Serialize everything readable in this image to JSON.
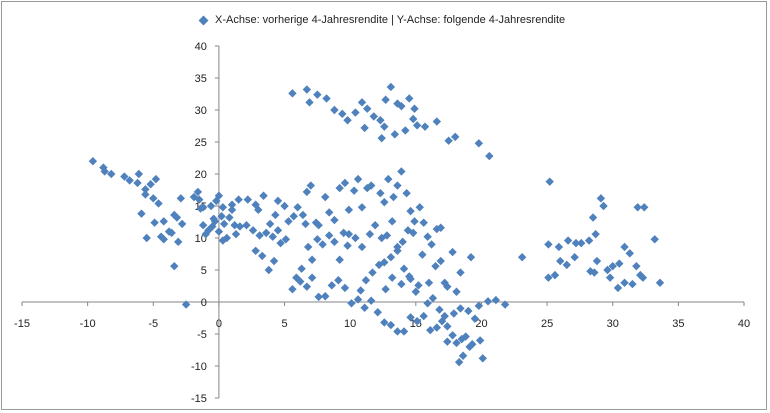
{
  "chart_data": {
    "type": "scatter",
    "title": "",
    "xlabel": "",
    "ylabel": "",
    "legend": {
      "position": "top",
      "series_name": "X-Achse: vorherige 4-Jahresrendite | Y-Achse: folgende 4-Jahresrendite"
    },
    "marker": "diamond",
    "color": "#4f81bd",
    "grid": false,
    "xlim": [
      -15,
      40
    ],
    "ylim": [
      -15,
      40
    ],
    "x_ticks": [
      -15,
      -10,
      -5,
      0,
      5,
      10,
      15,
      20,
      25,
      30,
      35,
      40
    ],
    "y_ticks": [
      -15,
      -10,
      -5,
      0,
      5,
      10,
      15,
      20,
      25,
      30,
      35,
      40
    ],
    "series": [
      {
        "name": "X-Achse: vorherige 4-Jahresrendite | Y-Achse: folgende 4-Jahresrendite",
        "points": [
          [
            -9.6,
            22
          ],
          [
            -8.8,
            21
          ],
          [
            -8.7,
            20.4
          ],
          [
            -8.2,
            20
          ],
          [
            -7.2,
            19.6
          ],
          [
            -6.8,
            19
          ],
          [
            -6.2,
            18.6
          ],
          [
            -6.1,
            20
          ],
          [
            -5.6,
            17.6
          ],
          [
            -5.2,
            18.4
          ],
          [
            -4.8,
            19.2
          ],
          [
            -5,
            16.2
          ],
          [
            -5.9,
            13.8
          ],
          [
            -5.6,
            16.8
          ],
          [
            -4.6,
            15.4
          ],
          [
            -4.9,
            12.4
          ],
          [
            -4.2,
            12.6
          ],
          [
            -3.8,
            11
          ],
          [
            -3.4,
            13.6
          ],
          [
            -3.2,
            13.2
          ],
          [
            -2.8,
            12.2
          ],
          [
            -2.9,
            16.2
          ],
          [
            -1.9,
            16.4
          ],
          [
            -1.4,
            14.6
          ],
          [
            -5.5,
            10
          ],
          [
            -4.4,
            10.2
          ],
          [
            -4.2,
            9.8
          ],
          [
            -3.6,
            10.8
          ],
          [
            -3.1,
            9.4
          ],
          [
            -3.4,
            5.6
          ],
          [
            -2.5,
            -0.4
          ],
          [
            -1.5,
            16
          ],
          [
            -1.2,
            14.8
          ],
          [
            -1.6,
            17.2
          ],
          [
            -1.2,
            12
          ],
          [
            -0.8,
            11.2
          ],
          [
            -0.6,
            15
          ],
          [
            -1,
            10.6
          ],
          [
            -0.4,
            13
          ],
          [
            -0.5,
            11.8
          ],
          [
            -0.3,
            12.6
          ],
          [
            -0.2,
            15.8
          ],
          [
            0,
            11
          ],
          [
            0,
            16.6
          ],
          [
            0.3,
            14.8
          ],
          [
            0.2,
            13.4
          ],
          [
            0.4,
            12.2
          ],
          [
            0.6,
            10
          ],
          [
            0.3,
            9.6
          ],
          [
            0.8,
            13.2
          ],
          [
            1,
            14.4
          ],
          [
            1.2,
            12
          ],
          [
            1,
            15.2
          ],
          [
            1.3,
            10.6
          ],
          [
            1.6,
            11.8
          ],
          [
            1.5,
            16
          ],
          [
            2.2,
            16
          ],
          [
            2.8,
            15.2
          ],
          [
            3,
            14.4
          ],
          [
            3.4,
            16.6
          ],
          [
            3.9,
            12.2
          ],
          [
            4.3,
            13.6
          ],
          [
            4.5,
            15.8
          ],
          [
            5,
            15
          ],
          [
            5.3,
            12.6
          ],
          [
            5.7,
            13.4
          ],
          [
            6,
            14.8
          ],
          [
            6.4,
            13.6
          ],
          [
            6.6,
            12.2
          ],
          [
            2.1,
            12
          ],
          [
            2.6,
            11.2
          ],
          [
            3.1,
            10.4
          ],
          [
            3.6,
            10.8
          ],
          [
            4.1,
            10.2
          ],
          [
            4.5,
            11.2
          ],
          [
            5.1,
            9.8
          ],
          [
            2.8,
            8
          ],
          [
            3.3,
            7.2
          ],
          [
            3.8,
            5
          ],
          [
            4.2,
            6.4
          ],
          [
            4.7,
            9.2
          ],
          [
            5.6,
            2
          ],
          [
            5.9,
            3.8
          ],
          [
            6.3,
            5.2
          ],
          [
            6.8,
            8.6
          ],
          [
            7.1,
            6.6
          ],
          [
            7.4,
            12.4
          ],
          [
            7.6,
            12
          ],
          [
            8.1,
            16.4
          ],
          [
            6.7,
            17.2
          ],
          [
            7,
            18.2
          ],
          [
            7.5,
            9.8
          ],
          [
            7.9,
            9
          ],
          [
            8.4,
            10.4
          ],
          [
            8.8,
            9.4
          ],
          [
            9.2,
            6.6
          ],
          [
            9.5,
            10.8
          ],
          [
            9.8,
            8.8
          ],
          [
            8.4,
            14
          ],
          [
            8.8,
            12.8
          ],
          [
            9.2,
            17.8
          ],
          [
            9.6,
            18.6
          ],
          [
            9.9,
            14.4
          ],
          [
            10.3,
            17.4
          ],
          [
            10.6,
            19.2
          ],
          [
            10.9,
            14.8
          ],
          [
            11.3,
            17.8
          ],
          [
            11.6,
            18.2
          ],
          [
            11.9,
            12
          ],
          [
            12.3,
            17
          ],
          [
            12.6,
            15.6
          ],
          [
            12.9,
            19.2
          ],
          [
            13.3,
            16.4
          ],
          [
            13.6,
            18.2
          ],
          [
            13.9,
            20.4
          ],
          [
            14.3,
            17
          ],
          [
            14.6,
            14.2
          ],
          [
            14.9,
            12.6
          ],
          [
            15.3,
            14.8
          ],
          [
            15.6,
            12.4
          ],
          [
            15.9,
            10.2
          ],
          [
            16.2,
            9
          ],
          [
            16.6,
            11.4
          ],
          [
            16.9,
            11.6
          ],
          [
            12.4,
            10
          ],
          [
            12.8,
            10.4
          ],
          [
            13.2,
            12.6
          ],
          [
            13.6,
            8.6
          ],
          [
            14,
            9.4
          ],
          [
            14.4,
            11.2
          ],
          [
            14.8,
            10.8
          ],
          [
            11.5,
            10.6
          ],
          [
            10.9,
            8.6
          ],
          [
            10.4,
            10
          ],
          [
            9.9,
            10.6
          ],
          [
            10.8,
            1.8
          ],
          [
            11.2,
            3.4
          ],
          [
            11.7,
            4.6
          ],
          [
            12.2,
            5.8
          ],
          [
            12.6,
            6.2
          ],
          [
            13.1,
            7
          ],
          [
            13.6,
            8
          ],
          [
            14.1,
            5.2
          ],
          [
            14.6,
            3.6
          ],
          [
            15,
            1.6
          ],
          [
            15.5,
            7.4
          ],
          [
            16,
            3
          ],
          [
            16.5,
            5.6
          ],
          [
            16.9,
            6.4
          ],
          [
            17.4,
            2.4
          ],
          [
            12.7,
            2
          ],
          [
            13.2,
            3.8
          ],
          [
            13.9,
            2.8
          ],
          [
            14.5,
            4
          ],
          [
            15.2,
            2.6
          ],
          [
            15.9,
            -0.2
          ],
          [
            16.3,
            0.6
          ],
          [
            17.2,
            3
          ],
          [
            17.8,
            7.8
          ],
          [
            18.1,
            1.6
          ],
          [
            18.4,
            4.6
          ],
          [
            19.2,
            7
          ],
          [
            19.8,
            -0.6
          ],
          [
            20.5,
            0.1
          ],
          [
            21.1,
            0.3
          ],
          [
            21.8,
            -0.4
          ],
          [
            6.2,
            3.2
          ],
          [
            6.7,
            2.4
          ],
          [
            7.1,
            3.8
          ],
          [
            7.6,
            0.8
          ],
          [
            8.1,
            0.9
          ],
          [
            8.6,
            2.6
          ],
          [
            9.1,
            3.4
          ],
          [
            9.6,
            2.2
          ],
          [
            10.1,
            -0.2
          ],
          [
            10.6,
            0.4
          ],
          [
            11.1,
            -0.9
          ],
          [
            11.6,
            0.2
          ],
          [
            12.1,
            -1.6
          ],
          [
            12.6,
            -3.2
          ],
          [
            13.1,
            -3.6
          ],
          [
            13.6,
            -4.6
          ],
          [
            14.1,
            -4.6
          ],
          [
            14.6,
            -2.4
          ],
          [
            15.1,
            -3
          ],
          [
            15.6,
            -2.2
          ],
          [
            16.1,
            -4.4
          ],
          [
            16.6,
            -4
          ],
          [
            17,
            -3
          ],
          [
            17.4,
            -3.8
          ],
          [
            17.8,
            -5.2
          ],
          [
            18.1,
            -6.4
          ],
          [
            18.5,
            -5.8
          ],
          [
            18.8,
            -5.4
          ],
          [
            19.1,
            -7
          ],
          [
            18.6,
            -8.4
          ],
          [
            18.3,
            -9.4
          ],
          [
            19.3,
            -6.6
          ],
          [
            19.9,
            -6
          ],
          [
            20.1,
            -8.8
          ],
          [
            17.4,
            -6.2
          ],
          [
            17.9,
            -1.8
          ],
          [
            17.2,
            -2.2
          ],
          [
            16.8,
            -1.2
          ],
          [
            18.4,
            -1
          ],
          [
            19,
            -1.4
          ],
          [
            19.5,
            -2.6
          ],
          [
            5.6,
            32.6
          ],
          [
            6.7,
            33.2
          ],
          [
            6.9,
            31.2
          ],
          [
            7.5,
            32.4
          ],
          [
            8.2,
            31.8
          ],
          [
            8.8,
            30
          ],
          [
            9.4,
            29.4
          ],
          [
            9.8,
            28.4
          ],
          [
            10.4,
            29.6
          ],
          [
            10.9,
            31.2
          ],
          [
            11.3,
            30.2
          ],
          [
            11.8,
            29
          ],
          [
            12.3,
            28.4
          ],
          [
            12.7,
            31.6
          ],
          [
            13.1,
            33.6
          ],
          [
            13.6,
            31
          ],
          [
            13.9,
            30.6
          ],
          [
            14.5,
            31.8
          ],
          [
            14.9,
            30.2
          ],
          [
            12.6,
            27.4
          ],
          [
            13.4,
            26.2
          ],
          [
            14.2,
            26.8
          ],
          [
            14.8,
            28.6
          ],
          [
            15.1,
            27.6
          ],
          [
            15.7,
            27.4
          ],
          [
            16.6,
            28.2
          ],
          [
            17.5,
            25.2
          ],
          [
            18,
            25.8
          ],
          [
            19.8,
            24.8
          ],
          [
            20.6,
            22.8
          ],
          [
            12.4,
            25.6
          ],
          [
            11.1,
            27.2
          ],
          [
            25.1,
            3.8
          ],
          [
            25.6,
            4.2
          ],
          [
            26,
            6.4
          ],
          [
            26.5,
            5.8
          ],
          [
            27.1,
            7
          ],
          [
            27.6,
            9.2
          ],
          [
            28.2,
            9.6
          ],
          [
            28.7,
            10.6
          ],
          [
            29.1,
            16.2
          ],
          [
            28.5,
            13.2
          ],
          [
            29.3,
            15
          ],
          [
            25.9,
            8.6
          ],
          [
            26.6,
            9.6
          ],
          [
            27.2,
            9.2
          ],
          [
            28.3,
            4.8
          ],
          [
            28.8,
            6.4
          ],
          [
            29.6,
            5
          ],
          [
            30,
            5.6
          ],
          [
            30.5,
            6
          ],
          [
            30.9,
            8.6
          ],
          [
            31.3,
            7.6
          ],
          [
            31.8,
            5.6
          ],
          [
            32.1,
            4.2
          ],
          [
            32.3,
            3.8
          ],
          [
            31.5,
            2.8
          ],
          [
            30.9,
            3
          ],
          [
            30.4,
            2.2
          ],
          [
            29.8,
            3.8
          ],
          [
            28.6,
            4.6
          ],
          [
            31.9,
            14.8
          ],
          [
            32.4,
            14.8
          ],
          [
            33.2,
            9.8
          ],
          [
            33.6,
            3
          ],
          [
            25.2,
            18.8
          ],
          [
            25.1,
            9
          ],
          [
            23.1,
            7
          ]
        ]
      }
    ]
  }
}
